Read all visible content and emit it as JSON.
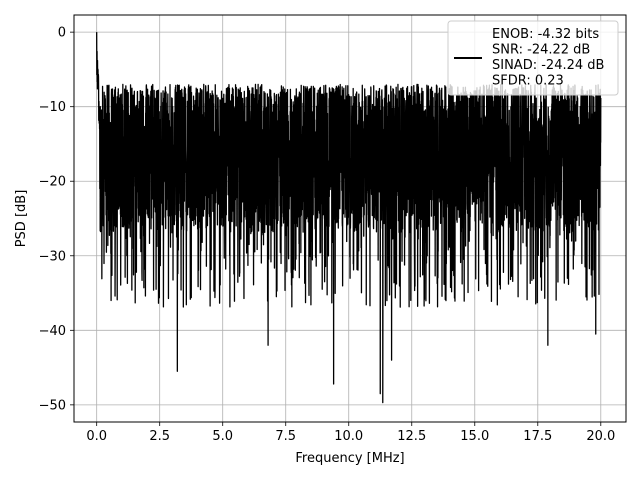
{
  "chart_data": {
    "type": "line",
    "title": "",
    "xlabel": "Frequency [MHz]",
    "ylabel": "PSD [dB]",
    "xlim": [
      -0.9,
      21.0
    ],
    "ylim": [
      -52.3,
      2.3
    ],
    "xticks": [
      0,
      2.5,
      5,
      7.5,
      10,
      12.5,
      15,
      17.5,
      20
    ],
    "xtick_labels": [
      "0.0",
      "2.5",
      "5.0",
      "7.5",
      "10.0",
      "12.5",
      "15.0",
      "17.5",
      "20.0"
    ],
    "yticks": [
      0,
      -10,
      -20,
      -30,
      -40,
      -50
    ],
    "ytick_labels": [
      "0",
      "−10",
      "−20",
      "−30",
      "−40",
      "−50"
    ],
    "grid": true,
    "legend_position": "top-right",
    "series": [
      {
        "color": "#000000",
        "x_range": [
          0,
          20
        ],
        "noise_band_db": [
          -27,
          -7
        ],
        "peak": {
          "x": 0.0,
          "y": 0
        },
        "notable_minima": [
          {
            "x": 3.2,
            "y": -45.5
          },
          {
            "x": 6.8,
            "y": -42
          },
          {
            "x": 9.4,
            "y": -47.2
          },
          {
            "x": 11.25,
            "y": -48.5
          },
          {
            "x": 11.35,
            "y": -49.7
          },
          {
            "x": 11.7,
            "y": -44
          },
          {
            "x": 17.9,
            "y": -42
          },
          {
            "x": 19.8,
            "y": -40.5
          }
        ]
      }
    ],
    "legend": {
      "lines": [
        "ENOB: -4.32 bits",
        "SNR: -24.22 dB",
        "SINAD: -24.24 dB",
        "SFDR: 0.23"
      ]
    }
  }
}
